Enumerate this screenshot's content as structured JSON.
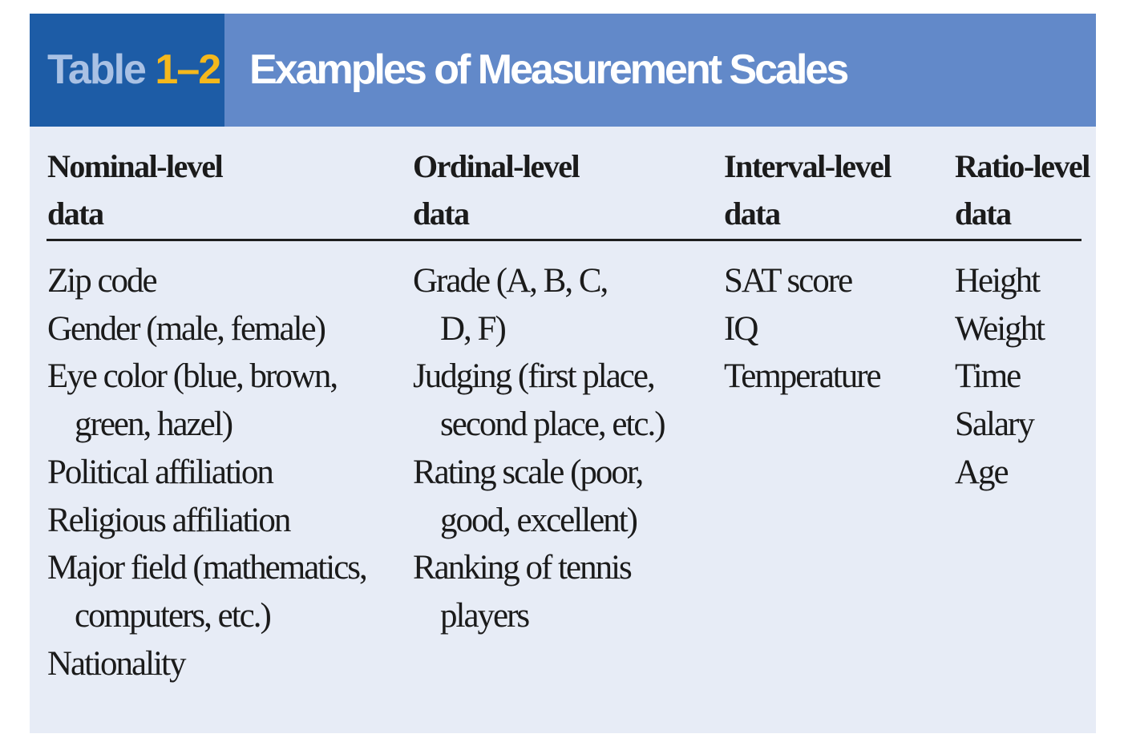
{
  "table": {
    "label_word": "Table",
    "label_number": "1–2",
    "title": "Examples of Measurement Scales",
    "columns": [
      {
        "header": [
          "Nominal-level",
          "data"
        ],
        "lines": [
          {
            "text": "Zip code",
            "indent": false
          },
          {
            "text": "Gender (male, female)",
            "indent": false
          },
          {
            "text": "Eye color (blue, brown,",
            "indent": false
          },
          {
            "text": "green, hazel)",
            "indent": true
          },
          {
            "text": "Political affiliation",
            "indent": false
          },
          {
            "text": "Religious affiliation",
            "indent": false
          },
          {
            "text": "Major field (mathematics,",
            "indent": false
          },
          {
            "text": "computers, etc.)",
            "indent": true
          },
          {
            "text": "Nationality",
            "indent": false
          }
        ]
      },
      {
        "header": [
          "Ordinal-level",
          "data"
        ],
        "lines": [
          {
            "text": "Grade (A, B, C,",
            "indent": false
          },
          {
            "text": "D, F)",
            "indent": true
          },
          {
            "text": "Judging (first place,",
            "indent": false
          },
          {
            "text": "second place, etc.)",
            "indent": true
          },
          {
            "text": "Rating scale (poor,",
            "indent": false
          },
          {
            "text": "good, excellent)",
            "indent": true
          },
          {
            "text": "Ranking of tennis",
            "indent": false
          },
          {
            "text": "players",
            "indent": true
          }
        ]
      },
      {
        "header": [
          "Interval-level",
          "data"
        ],
        "lines": [
          {
            "text": "SAT score",
            "indent": false
          },
          {
            "text": "IQ",
            "indent": false
          },
          {
            "text": "Temperature",
            "indent": false
          }
        ]
      },
      {
        "header": [
          "Ratio-level",
          "data"
        ],
        "lines": [
          {
            "text": "Height",
            "indent": false
          },
          {
            "text": "Weight",
            "indent": false
          },
          {
            "text": "Time",
            "indent": false
          },
          {
            "text": "Salary",
            "indent": false
          },
          {
            "text": "Age",
            "indent": false
          }
        ]
      }
    ]
  }
}
